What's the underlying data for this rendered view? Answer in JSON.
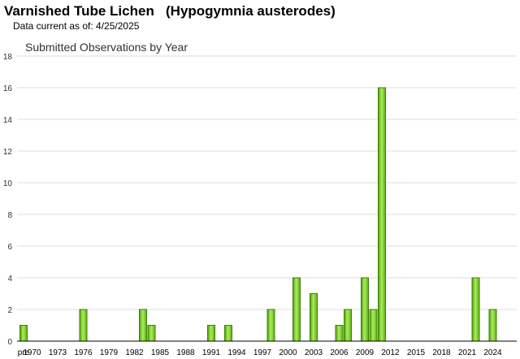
{
  "header": {
    "title": "Varnished Tube Lichen   (Hypogymnia austerodes)",
    "subtitle": "Data current as of: 4/25/2025"
  },
  "chart_data": {
    "type": "bar",
    "title": "Submitted Observations by Year",
    "xlabel": "",
    "ylabel": "",
    "ylim": [
      0,
      18
    ],
    "yticks": [
      0,
      2,
      4,
      6,
      8,
      10,
      12,
      14,
      16,
      18
    ],
    "grid": true,
    "bar_color": "#7ed321",
    "categories": [
      "pre",
      "1970",
      "1971",
      "1972",
      "1973",
      "1974",
      "1975",
      "1976",
      "1977",
      "1978",
      "1979",
      "1980",
      "1981",
      "1982",
      "1983",
      "1984",
      "1985",
      "1986",
      "1987",
      "1988",
      "1989",
      "1990",
      "1991",
      "1992",
      "1993",
      "1994",
      "1995",
      "1996",
      "1997",
      "1998",
      "1999",
      "2000",
      "2001",
      "2002",
      "2003",
      "2004",
      "2005",
      "2006",
      "2007",
      "2008",
      "2009",
      "2010",
      "2011",
      "2012",
      "2013",
      "2014",
      "2015",
      "2016",
      "2017",
      "2018",
      "2019",
      "2020",
      "2021",
      "2022",
      "2023",
      "2024"
    ],
    "values": [
      1,
      0,
      0,
      0,
      0,
      0,
      0,
      2,
      0,
      0,
      0,
      0,
      0,
      0,
      2,
      1,
      0,
      0,
      0,
      0,
      0,
      0,
      1,
      0,
      1,
      0,
      0,
      0,
      0,
      2,
      0,
      0,
      4,
      0,
      3,
      0,
      0,
      1,
      2,
      0,
      4,
      2,
      16,
      0,
      0,
      0,
      0,
      0,
      0,
      0,
      0,
      0,
      0,
      4,
      0,
      2
    ],
    "xtick_labels": [
      "pre",
      "1970",
      "1973",
      "1976",
      "1979",
      "1982",
      "1985",
      "1988",
      "1991",
      "1994",
      "1997",
      "2000",
      "2003",
      "2006",
      "2009",
      "2012",
      "2015",
      "2018",
      "2021",
      "2024"
    ]
  }
}
